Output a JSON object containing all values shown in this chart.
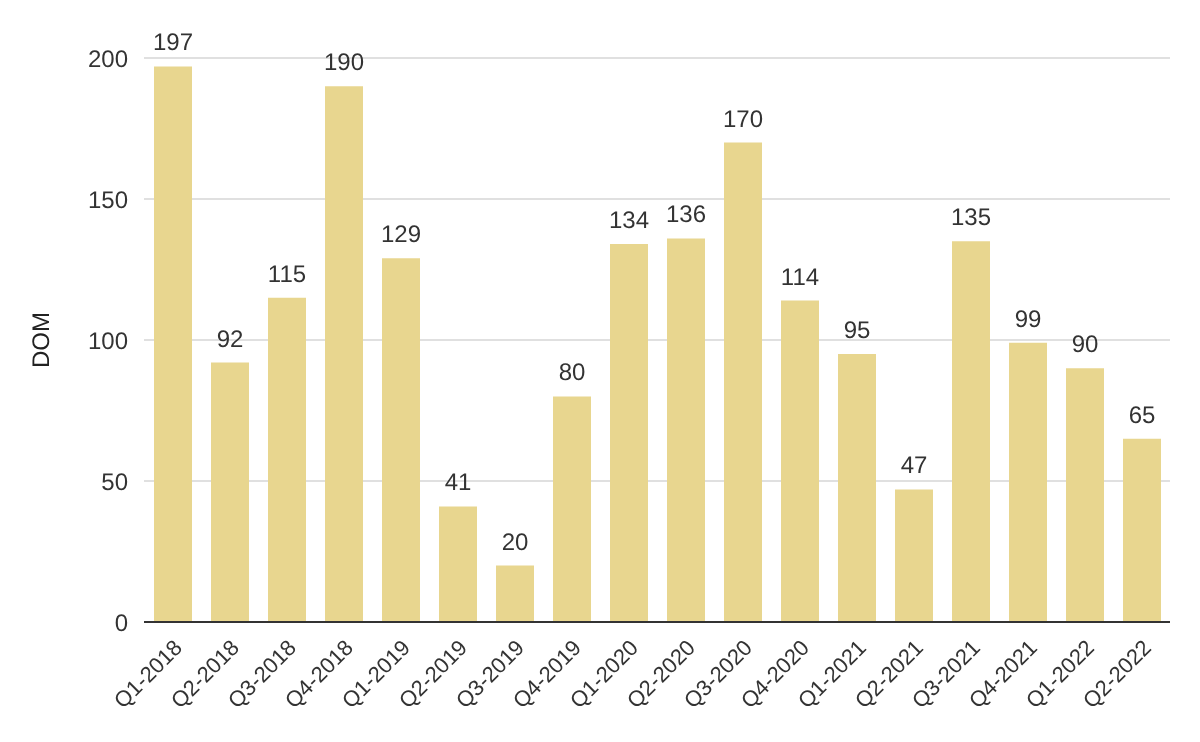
{
  "chart_data": {
    "type": "bar",
    "ylabel": "DOM",
    "categories": [
      "Q1-2018",
      "Q2-2018",
      "Q3-2018",
      "Q4-2018",
      "Q1-2019",
      "Q2-2019",
      "Q3-2019",
      "Q4-2019",
      "Q1-2020",
      "Q2-2020",
      "Q3-2020",
      "Q4-2020",
      "Q1-2021",
      "Q2-2021",
      "Q3-2021",
      "Q4-2021",
      "Q1-2022",
      "Q2-2022"
    ],
    "values": [
      197,
      92,
      115,
      190,
      129,
      41,
      20,
      80,
      134,
      136,
      170,
      114,
      95,
      47,
      135,
      99,
      90,
      65
    ],
    "color": "#e8d68f",
    "ylim": [
      0,
      200
    ],
    "yticks": [
      0,
      50,
      100,
      150,
      200
    ],
    "grid": "y",
    "data_labels": true
  }
}
